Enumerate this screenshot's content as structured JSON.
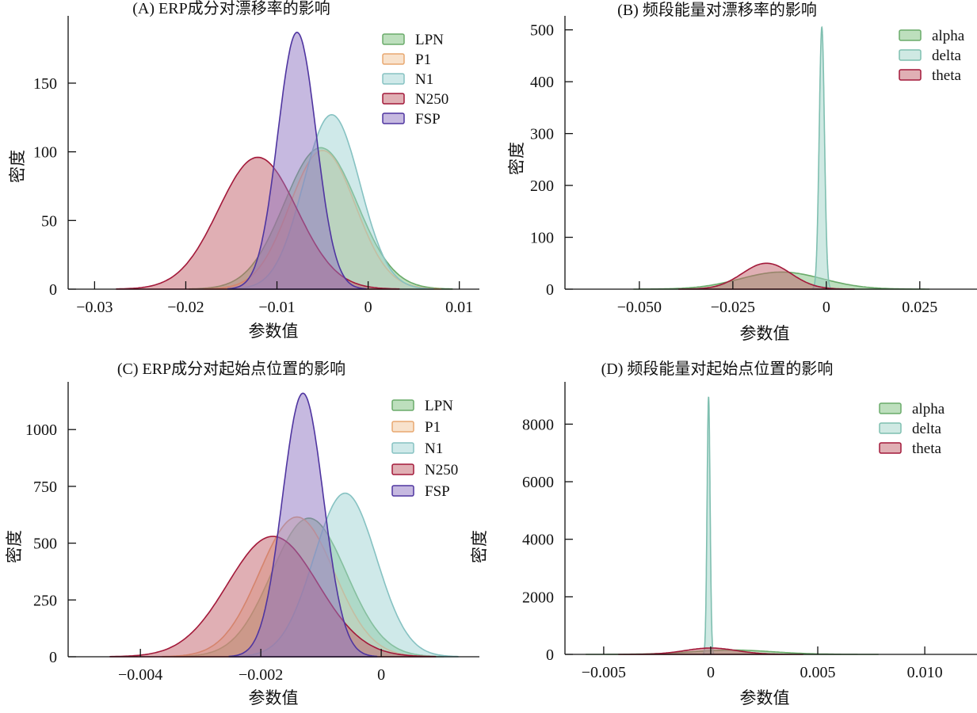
{
  "chart_data": [
    {
      "type": "area",
      "title": "(A) ERP成分对漂移率的影响",
      "xlabel": "参数值",
      "ylabel": "密度",
      "xlim": [
        -0.0329,
        0.0122
      ],
      "ylim": [
        0,
        199
      ],
      "xticks": [
        -0.03,
        -0.02,
        -0.01,
        0,
        0.01
      ],
      "xtick_labels": [
        "−0.03",
        "−0.02",
        "−0.01",
        "0",
        "0.01"
      ],
      "yticks": [
        0,
        50,
        100,
        150
      ],
      "ytick_labels": [
        "0",
        "50",
        "100",
        "150"
      ],
      "legend": "top-right",
      "series": [
        {
          "name": "LPN",
          "peak_x": -0.0052,
          "peak_density": 103,
          "sd": 0.004,
          "color": "#7cbf7c",
          "stroke": "#6aab6a"
        },
        {
          "name": "P1",
          "peak_x": -0.005,
          "peak_density": 101,
          "sd": 0.0036,
          "color": "#f2c59a",
          "stroke": "#e8a870"
        },
        {
          "name": "N1",
          "peak_x": -0.004,
          "peak_density": 127,
          "sd": 0.0031,
          "color": "#9fd3d3",
          "stroke": "#86c2c2"
        },
        {
          "name": "N250",
          "peak_x": -0.0121,
          "peak_density": 96,
          "sd": 0.0043,
          "color": "#c2606a",
          "stroke": "#a3193a"
        },
        {
          "name": "FSP",
          "peak_x": -0.0078,
          "peak_density": 187,
          "sd": 0.0021,
          "color": "#8d74c2",
          "stroke": "#4f35a0"
        }
      ]
    },
    {
      "type": "area",
      "title": "(B) 频段能量对漂移率的影响",
      "xlabel": "参数值",
      "ylabel": "密度",
      "xlim": [
        -0.0699,
        0.0403
      ],
      "ylim": [
        0,
        527
      ],
      "xticks": [
        -0.05,
        -0.025,
        0,
        0.025
      ],
      "xtick_labels": [
        "−0.050",
        "−0.025",
        "0",
        "0.025"
      ],
      "yticks": [
        0,
        100,
        200,
        300,
        400,
        500
      ],
      "ytick_labels": [
        "0",
        "100",
        "200",
        "300",
        "400",
        "500"
      ],
      "legend": "top-right",
      "series": [
        {
          "name": "alpha",
          "peak_x": -0.012,
          "peak_density": 33,
          "sd": 0.011,
          "color": "#7cbf7c",
          "stroke": "#6aab6a"
        },
        {
          "name": "delta",
          "peak_x": -0.0012,
          "peak_density": 505,
          "sd": 0.0007,
          "color": "#9fd3c8",
          "stroke": "#7fbfb0"
        },
        {
          "name": "theta",
          "peak_x": -0.016,
          "peak_density": 50,
          "sd": 0.0065,
          "color": "#c2606a",
          "stroke": "#a3193a"
        }
      ]
    },
    {
      "type": "area",
      "title": "(C) ERP成分对起始点位置的影响",
      "xlabel": "参数值",
      "ylabel": "密度",
      "xlim": [
        -0.0052,
        0.00163
      ],
      "ylim": [
        0,
        1210
      ],
      "xticks": [
        -0.004,
        -0.002,
        0
      ],
      "xtick_labels": [
        "−0.004",
        "−0.002",
        "0"
      ],
      "yticks": [
        0,
        250,
        500,
        750,
        1000
      ],
      "ytick_labels": [
        "0",
        "250",
        "500",
        "750",
        "1000"
      ],
      "legend": "top-right",
      "series": [
        {
          "name": "LPN",
          "peak_x": -0.0012,
          "peak_density": 610,
          "sd": 0.00062,
          "color": "#7cbf7c",
          "stroke": "#6aab6a"
        },
        {
          "name": "P1",
          "peak_x": -0.0014,
          "peak_density": 615,
          "sd": 0.00062,
          "color": "#f2c59a",
          "stroke": "#e8a870"
        },
        {
          "name": "N1",
          "peak_x": -0.0006,
          "peak_density": 720,
          "sd": 0.00052,
          "color": "#9fd3d3",
          "stroke": "#86c2c2"
        },
        {
          "name": "N250",
          "peak_x": -0.0018,
          "peak_density": 530,
          "sd": 0.00075,
          "color": "#c2606a",
          "stroke": "#a3193a"
        },
        {
          "name": "FSP",
          "peak_x": -0.0013,
          "peak_density": 1160,
          "sd": 0.00034,
          "color": "#8d74c2",
          "stroke": "#4f35a0"
        }
      ]
    },
    {
      "type": "area",
      "title": "(D) 频段能量对起始点位置的影响",
      "xlabel": "参数值",
      "ylabel": "密度",
      "xlim": [
        -0.00681,
        0.01244
      ],
      "ylim": [
        0,
        9470
      ],
      "xticks": [
        -0.005,
        0,
        0.005,
        0.01
      ],
      "xtick_labels": [
        "−0.005",
        "0",
        "0.005",
        "0.010"
      ],
      "yticks": [
        0,
        2000,
        4000,
        6000,
        8000
      ],
      "ytick_labels": [
        "0",
        "2000",
        "4000",
        "6000",
        "8000"
      ],
      "legend": "top-right",
      "series": [
        {
          "name": "alpha",
          "peak_x": 0.001,
          "peak_density": 150,
          "sd": 0.0019,
          "color": "#7cbf7c",
          "stroke": "#6aab6a"
        },
        {
          "name": "delta",
          "peak_x": -0.0001,
          "peak_density": 8950,
          "sd": 7e-05,
          "color": "#9fd3c8",
          "stroke": "#7fbfb0"
        },
        {
          "name": "theta",
          "peak_x": 0.0,
          "peak_density": 220,
          "sd": 0.0012,
          "color": "#c2606a",
          "stroke": "#a3193a"
        }
      ]
    }
  ]
}
